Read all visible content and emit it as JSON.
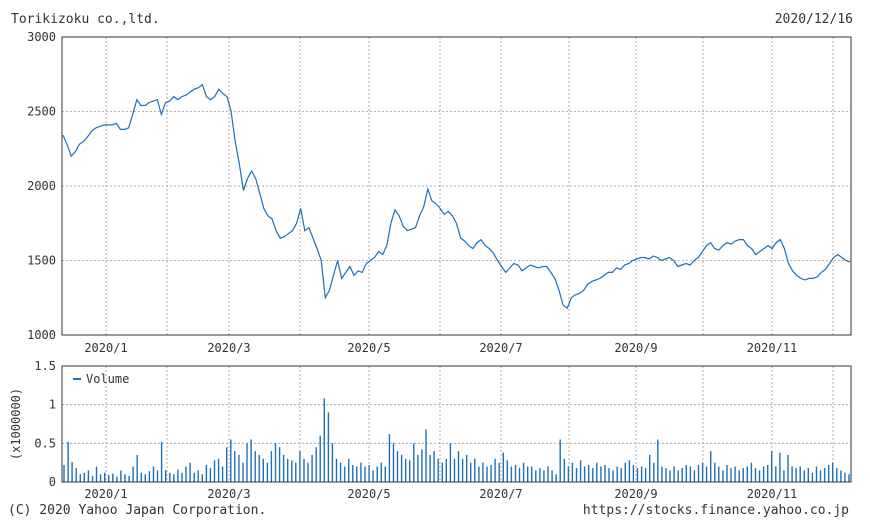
{
  "header": {
    "company": "Torikizoku co.,ltd.",
    "date": "2020/12/16"
  },
  "footer": {
    "copyright": "(C) 2020 Yahoo Japan Corporation.",
    "url": "https://stocks.finance.yahoo.co.jp"
  },
  "colors": {
    "line": "#1f6fb5",
    "grid": "#999999",
    "axis": "#333333"
  },
  "chart_data": [
    {
      "type": "line",
      "title": "",
      "ylim": [
        1000,
        3000
      ],
      "y_ticks": [
        "3000",
        "2500",
        "2000",
        "1500",
        "1000"
      ],
      "x_tick_labels": [
        "2020/1",
        "2020/3",
        "2020/5",
        "2020/7",
        "2020/9",
        "2020/11"
      ],
      "grid": true,
      "series": [
        {
          "values": [
            2340,
            2280,
            2200,
            2230,
            2280,
            2300,
            2330,
            2370,
            2390,
            2400,
            2410,
            2410,
            2410,
            2420,
            2380,
            2380,
            2390,
            2480,
            2580,
            2540,
            2540,
            2560,
            2570,
            2580,
            2480,
            2560,
            2570,
            2600,
            2580,
            2600,
            2610,
            2630,
            2650,
            2660,
            2680,
            2600,
            2580,
            2600,
            2650,
            2620,
            2600,
            2500,
            2300,
            2150,
            1970,
            2050,
            2100,
            2050,
            1950,
            1850,
            1800,
            1780,
            1700,
            1650,
            1660,
            1680,
            1700,
            1750,
            1850,
            1700,
            1720,
            1650,
            1580,
            1500,
            1250,
            1300,
            1400,
            1500,
            1380,
            1420,
            1460,
            1400,
            1430,
            1420,
            1480,
            1500,
            1520,
            1560,
            1540,
            1600,
            1750,
            1840,
            1800,
            1730,
            1700,
            1710,
            1720,
            1800,
            1860,
            1980,
            1900,
            1880,
            1850,
            1810,
            1830,
            1800,
            1750,
            1650,
            1630,
            1600,
            1580,
            1620,
            1640,
            1600,
            1580,
            1550,
            1500,
            1460,
            1420,
            1450,
            1480,
            1470,
            1430,
            1450,
            1470,
            1460,
            1450,
            1460,
            1460,
            1420,
            1380,
            1300,
            1200,
            1180,
            1250,
            1270,
            1280,
            1300,
            1340,
            1360,
            1370,
            1380,
            1400,
            1420,
            1420,
            1450,
            1440,
            1470,
            1480,
            1500,
            1510,
            1520,
            1520,
            1510,
            1530,
            1520,
            1500,
            1510,
            1520,
            1500,
            1460,
            1470,
            1480,
            1470,
            1500,
            1520,
            1560,
            1600,
            1620,
            1580,
            1570,
            1600,
            1620,
            1610,
            1630,
            1640,
            1640,
            1600,
            1580,
            1540,
            1560,
            1580,
            1600,
            1580,
            1620,
            1640,
            1580,
            1480,
            1430,
            1400,
            1380,
            1370,
            1380,
            1380,
            1390,
            1420,
            1440,
            1480,
            1520,
            1540,
            1520,
            1500,
            1490
          ]
        }
      ]
    },
    {
      "type": "bar",
      "ylim": [
        0,
        1.5
      ],
      "y_ticks": [
        "1.5",
        "1",
        "0.5",
        "0"
      ],
      "ylabel": "(x1000000)",
      "legend": "Volume",
      "legend_position": "top-left",
      "x_tick_labels": [
        "2020/1",
        "2020/3",
        "2020/5",
        "2020/7",
        "2020/9",
        "2020/11"
      ],
      "grid": true,
      "series": [
        {
          "name": "Volume",
          "values": [
            0.22,
            0.52,
            0.26,
            0.18,
            0.1,
            0.12,
            0.15,
            0.08,
            0.2,
            0.1,
            0.12,
            0.09,
            0.11,
            0.07,
            0.15,
            0.1,
            0.08,
            0.2,
            0.35,
            0.12,
            0.1,
            0.14,
            0.2,
            0.15,
            0.52,
            0.15,
            0.12,
            0.1,
            0.16,
            0.12,
            0.2,
            0.25,
            0.12,
            0.15,
            0.1,
            0.22,
            0.18,
            0.28,
            0.3,
            0.2,
            0.45,
            0.55,
            0.4,
            0.35,
            0.25,
            0.5,
            0.55,
            0.4,
            0.35,
            0.3,
            0.25,
            0.4,
            0.5,
            0.45,
            0.35,
            0.3,
            0.28,
            0.25,
            0.4,
            0.3,
            0.25,
            0.35,
            0.45,
            0.6,
            1.08,
            0.9,
            0.5,
            0.3,
            0.25,
            0.2,
            0.3,
            0.22,
            0.2,
            0.25,
            0.2,
            0.22,
            0.15,
            0.2,
            0.25,
            0.2,
            0.62,
            0.5,
            0.4,
            0.35,
            0.3,
            0.28,
            0.5,
            0.35,
            0.42,
            0.68,
            0.35,
            0.4,
            0.3,
            0.25,
            0.3,
            0.5,
            0.3,
            0.4,
            0.3,
            0.35,
            0.25,
            0.3,
            0.2,
            0.25,
            0.2,
            0.22,
            0.3,
            0.25,
            0.38,
            0.28,
            0.2,
            0.22,
            0.18,
            0.25,
            0.2,
            0.2,
            0.15,
            0.18,
            0.15,
            0.2,
            0.15,
            0.1,
            0.55,
            0.3,
            0.2,
            0.25,
            0.18,
            0.28,
            0.2,
            0.22,
            0.18,
            0.25,
            0.2,
            0.22,
            0.18,
            0.15,
            0.2,
            0.18,
            0.25,
            0.28,
            0.22,
            0.18,
            0.2,
            0.18,
            0.35,
            0.25,
            0.55,
            0.2,
            0.18,
            0.15,
            0.2,
            0.15,
            0.18,
            0.22,
            0.2,
            0.15,
            0.22,
            0.25,
            0.2,
            0.4,
            0.25,
            0.2,
            0.15,
            0.22,
            0.18,
            0.2,
            0.15,
            0.18,
            0.2,
            0.25,
            0.18,
            0.15,
            0.2,
            0.22,
            0.4,
            0.2,
            0.38,
            0.15,
            0.35,
            0.2,
            0.18,
            0.2,
            0.15,
            0.18,
            0.12,
            0.2,
            0.15,
            0.18,
            0.22,
            0.25,
            0.18,
            0.15,
            0.12,
            0.1
          ]
        }
      ]
    }
  ]
}
